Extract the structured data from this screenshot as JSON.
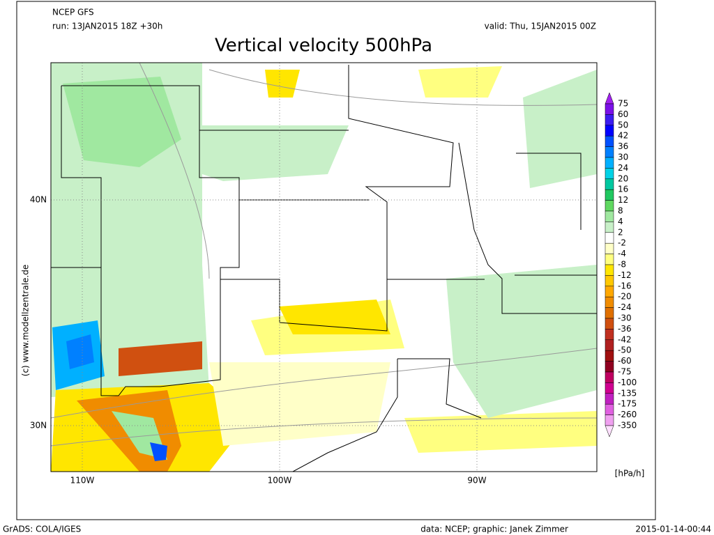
{
  "header": {
    "model": "NCEP GFS",
    "run": "run: 13JAN2015 18Z +30h",
    "valid": "valid: Thu, 15JAN2015 00Z",
    "title": "Vertical velocity 500hPa"
  },
  "map": {
    "lat_labels": [
      "40N",
      "30N"
    ],
    "lon_labels": [
      "110W",
      "100W",
      "90W"
    ],
    "credit": "(c) www.modellzentrale.de"
  },
  "colorbar": {
    "levels": [
      75,
      60,
      50,
      42,
      36,
      30,
      24,
      20,
      16,
      12,
      8,
      4,
      2,
      -2,
      -4,
      -8,
      -12,
      -16,
      -20,
      -24,
      -30,
      -36,
      -42,
      -50,
      -60,
      -75,
      -100,
      -135,
      -175,
      -260,
      -350
    ],
    "colors": [
      "#a020f0",
      "#7a10e8",
      "#3c1cf0",
      "#0000ff",
      "#0050ff",
      "#0080ff",
      "#00b0ff",
      "#00d2e6",
      "#00c8a0",
      "#20c860",
      "#60d860",
      "#a0e8a0",
      "#c8f0c8",
      "#ffffff",
      "#ffffc8",
      "#ffff80",
      "#ffe600",
      "#ffc800",
      "#ffa800",
      "#f08c00",
      "#e07000",
      "#d05010",
      "#c03020",
      "#b02020",
      "#a01010",
      "#900020",
      "#c00060",
      "#d00090",
      "#c020c0",
      "#e060e0",
      "#f0a0f0",
      "#ffe0ff"
    ],
    "unit": "[hPa/h]"
  },
  "footer": {
    "left": "GrADS: COLA/IGES",
    "center": "data: NCEP; graphic: Janek Zimmer",
    "right": "2015-01-14-00:44"
  }
}
